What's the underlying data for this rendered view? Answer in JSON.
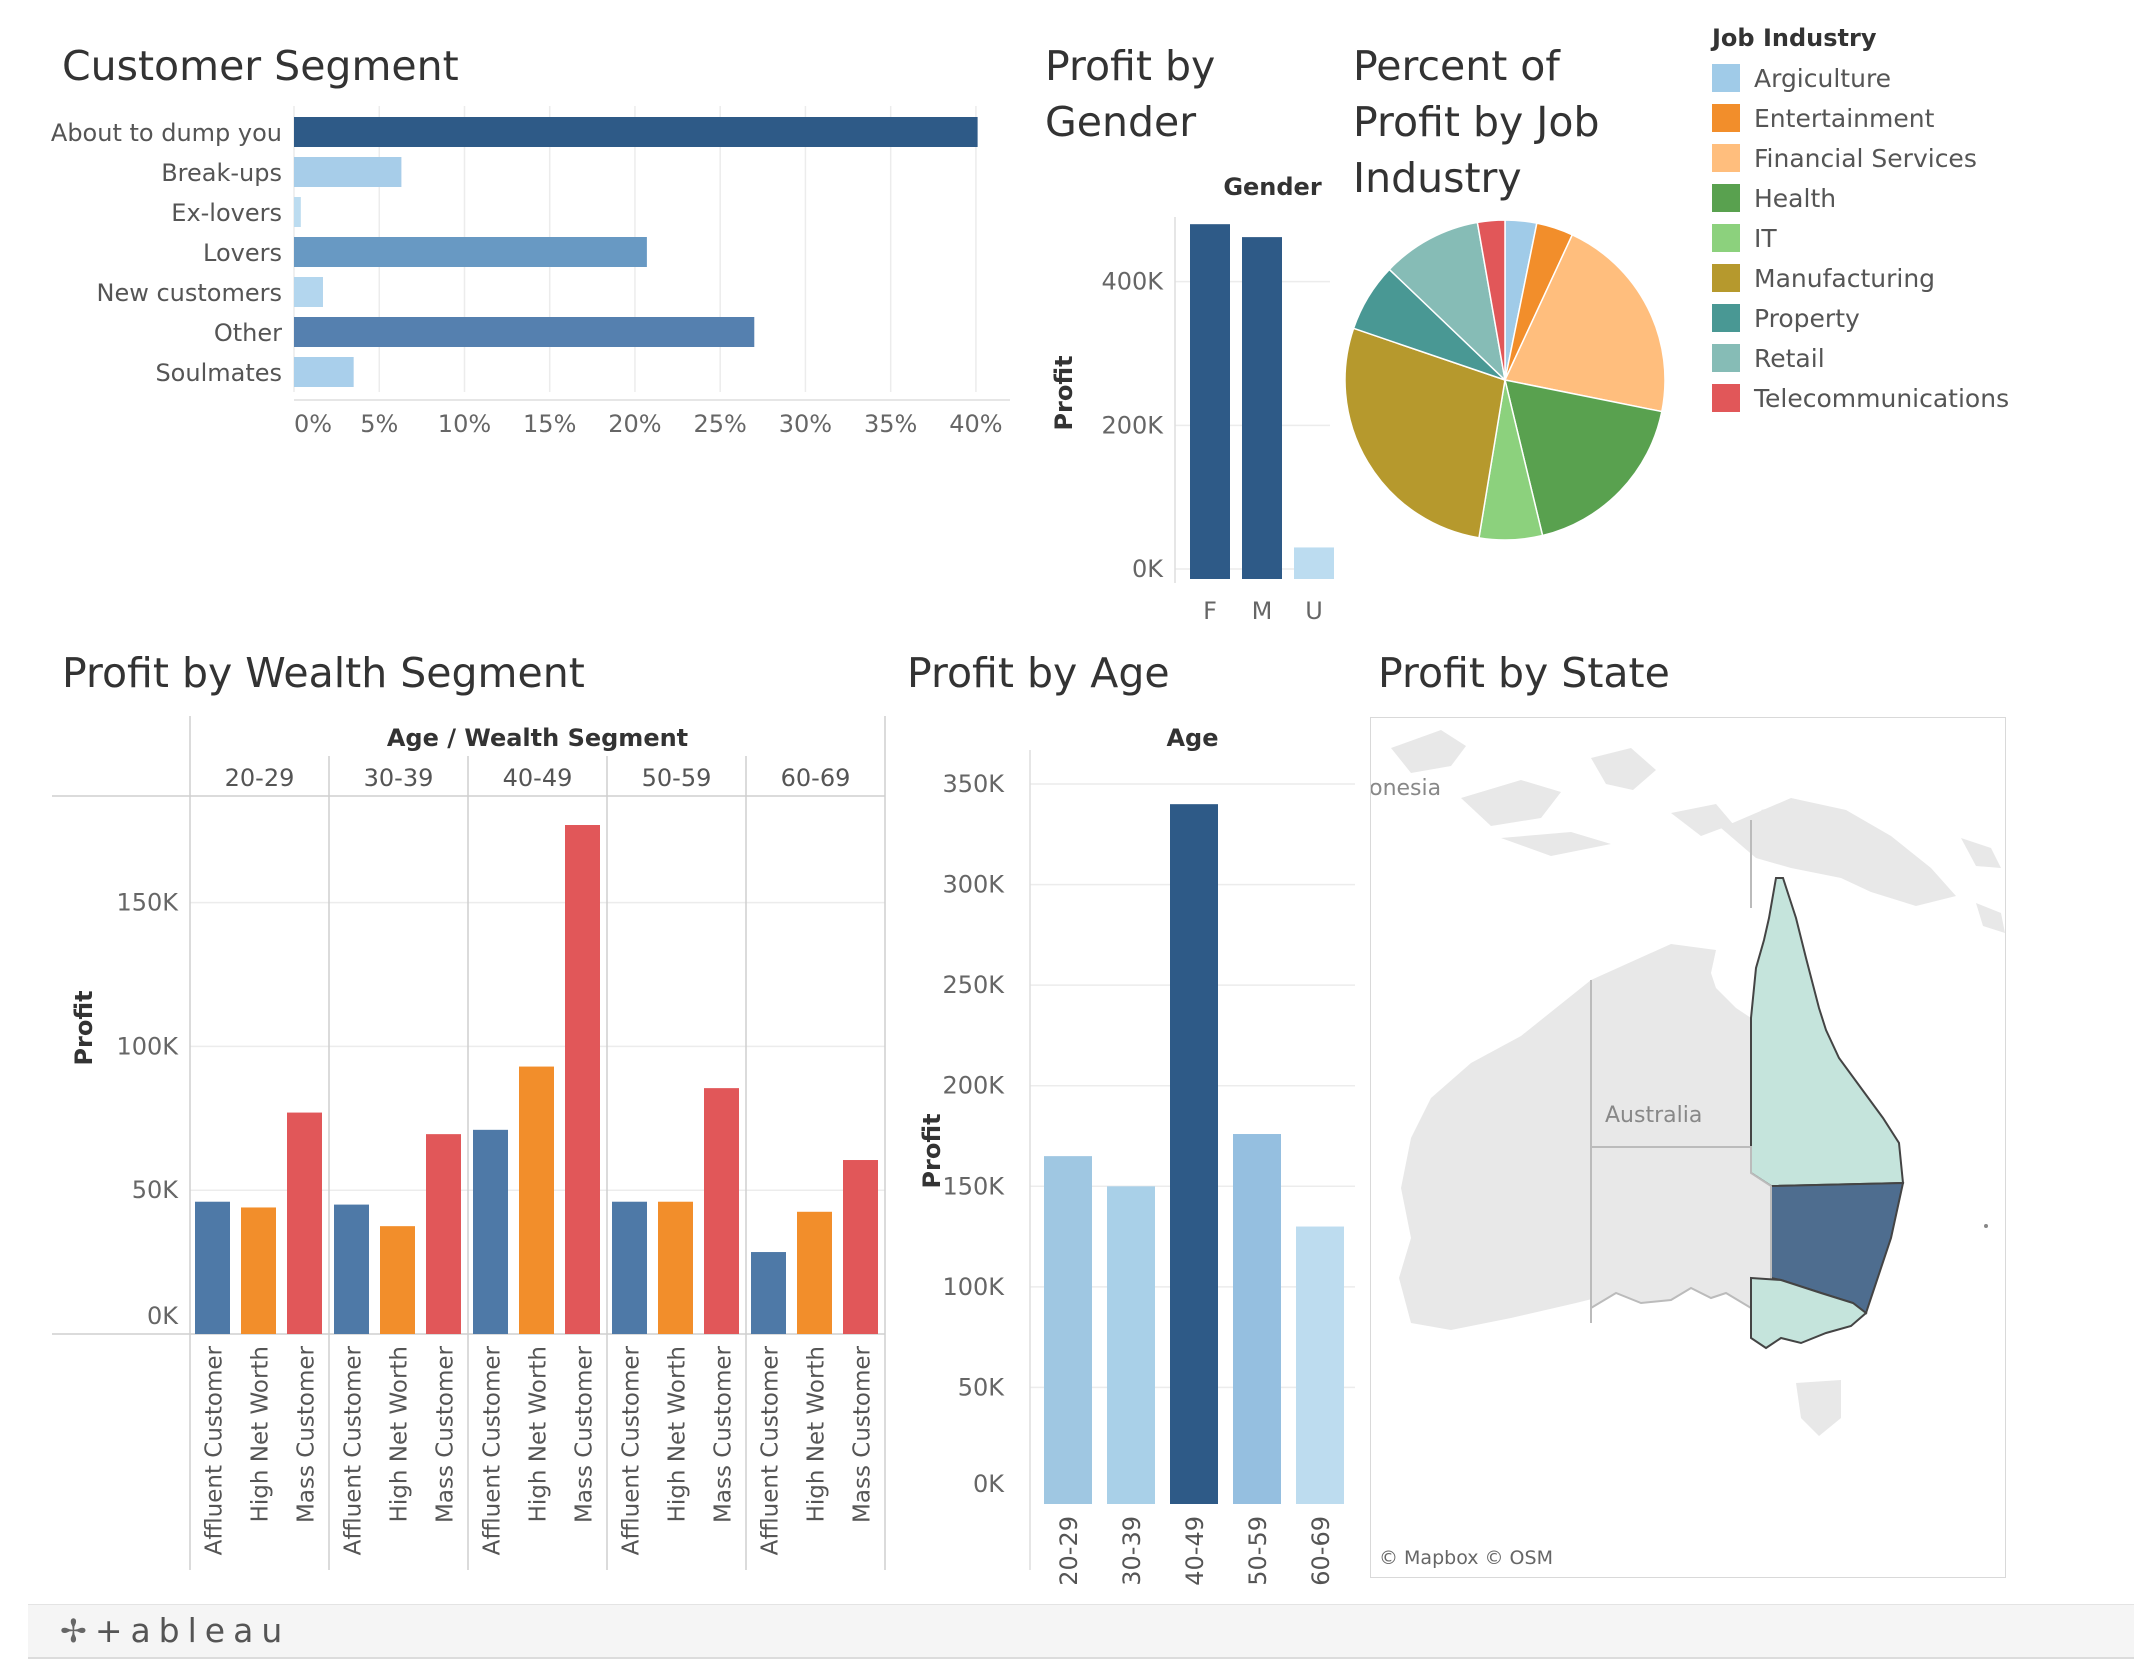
{
  "titles": {
    "customer_segment": "Customer Segment",
    "profit_gender": [
      "Profit by",
      "Gender"
    ],
    "percent_job": [
      "Percent of",
      "Profit by Job",
      "Industry"
    ],
    "wealth_segment": "Profit by Wealth Segment",
    "profit_age": "Profit by Age",
    "profit_state": "Profit by State"
  },
  "legend": {
    "title": "Job Industry",
    "items": [
      {
        "label": "Argiculture",
        "color": "#a0cbe8"
      },
      {
        "label": "Entertainment",
        "color": "#f28e2b"
      },
      {
        "label": "Financial Services",
        "color": "#ffbe7d"
      },
      {
        "label": "Health",
        "color": "#59a14f"
      },
      {
        "label": "IT",
        "color": "#8cd17d"
      },
      {
        "label": "Manufacturing",
        "color": "#b6992d"
      },
      {
        "label": "Property",
        "color": "#499894"
      },
      {
        "label": "Retail",
        "color": "#86bcb6"
      },
      {
        "label": "Telecommunications",
        "color": "#e15759"
      }
    ]
  },
  "map": {
    "attribution": "© Mapbox  © OSM",
    "labels": {
      "country": "Australia",
      "neighbor": "ionesia"
    },
    "colors": {
      "land": "#e8e8e8",
      "qld_vic": "#c5e4dc",
      "nsw": "#4e6d8f",
      "border": "#444444"
    }
  },
  "footer": {
    "logo_mark": "✢",
    "logo_text": "+ableau"
  },
  "chart_data": [
    {
      "id": "customer_segment",
      "type": "bar",
      "orientation": "horizontal",
      "categories": [
        "About to dump you",
        "Break-ups",
        "Ex-lovers",
        "Lovers",
        "New customers",
        "Other",
        "Soulmates"
      ],
      "values": [
        40.1,
        6.3,
        0.4,
        20.7,
        1.7,
        27.0,
        3.5
      ],
      "colors": [
        "#2e5a87",
        "#a7cde9",
        "#bcdcf0",
        "#6899c3",
        "#b3d6ee",
        "#5580af",
        "#a9cfeb"
      ],
      "x_ticks": [
        "0%",
        "5%",
        "10%",
        "15%",
        "20%",
        "25%",
        "30%",
        "35%",
        "40%"
      ],
      "xlim": [
        0,
        42
      ]
    },
    {
      "id": "profit_gender",
      "type": "bar",
      "header": "Gender",
      "ylabel": "Profit",
      "categories": [
        "F",
        "M",
        "U"
      ],
      "values": [
        480000,
        462000,
        30000
      ],
      "colors": [
        "#2e5a87",
        "#2e5a87",
        "#bcdcf0"
      ],
      "y_ticks": [
        {
          "v": 0,
          "label": "0K"
        },
        {
          "v": 200000,
          "label": "200K"
        },
        {
          "v": 400000,
          "label": "400K"
        }
      ],
      "ylim": [
        0,
        490000
      ]
    },
    {
      "id": "percent_job",
      "type": "pie",
      "categories": [
        "Argiculture",
        "Entertainment",
        "Financial Services",
        "Health",
        "IT",
        "Manufacturing",
        "Property",
        "Retail",
        "Telecommunications"
      ],
      "values": [
        3.0,
        3.5,
        20.0,
        17.0,
        6.0,
        26.0,
        6.5,
        9.5,
        2.6
      ],
      "colors": [
        "#a0cbe8",
        "#f28e2b",
        "#ffbe7d",
        "#59a14f",
        "#8cd17d",
        "#b6992d",
        "#499894",
        "#86bcb6",
        "#e15759"
      ]
    },
    {
      "id": "wealth_segment",
      "type": "bar",
      "header": "Age / Wealth Segment",
      "ylabel": "Profit",
      "groups": [
        "20-29",
        "30-39",
        "40-49",
        "50-59",
        "60-69"
      ],
      "categories": [
        "Affluent Customer",
        "High Net Worth",
        "Mass Customer"
      ],
      "series": [
        {
          "values": [
            46000,
            44000,
            77000
          ],
          "colors": [
            "#4e79a7",
            "#f28e2b",
            "#e15759"
          ]
        },
        {
          "values": [
            45000,
            37500,
            69500
          ]
        },
        {
          "values": [
            71000,
            93000,
            177000
          ]
        },
        {
          "values": [
            46000,
            46000,
            85500
          ]
        },
        {
          "values": [
            28500,
            42500,
            60500
          ]
        }
      ],
      "y_ticks": [
        {
          "v": 0,
          "label": "0K"
        },
        {
          "v": 50000,
          "label": "50K"
        },
        {
          "v": 100000,
          "label": "100K"
        },
        {
          "v": 150000,
          "label": "150K"
        }
      ],
      "ylim": [
        0,
        185000
      ]
    },
    {
      "id": "profit_age",
      "type": "bar",
      "header": "Age",
      "ylabel": "Profit",
      "categories": [
        "20-29",
        "30-39",
        "40-49",
        "50-59",
        "60-69"
      ],
      "values": [
        165000,
        150000,
        340000,
        176000,
        130000
      ],
      "colors": [
        "#9fc7e2",
        "#a9d0e8",
        "#2e5a87",
        "#95bfe0",
        "#bddcef"
      ],
      "y_ticks": [
        {
          "v": 0,
          "label": "0K"
        },
        {
          "v": 50000,
          "label": "50K"
        },
        {
          "v": 100000,
          "label": "100K"
        },
        {
          "v": 150000,
          "label": "150K"
        },
        {
          "v": 200000,
          "label": "200K"
        },
        {
          "v": 250000,
          "label": "250K"
        },
        {
          "v": 300000,
          "label": "300K"
        },
        {
          "v": 350000,
          "label": "350K"
        }
      ],
      "ylim": [
        0,
        355000
      ]
    }
  ]
}
